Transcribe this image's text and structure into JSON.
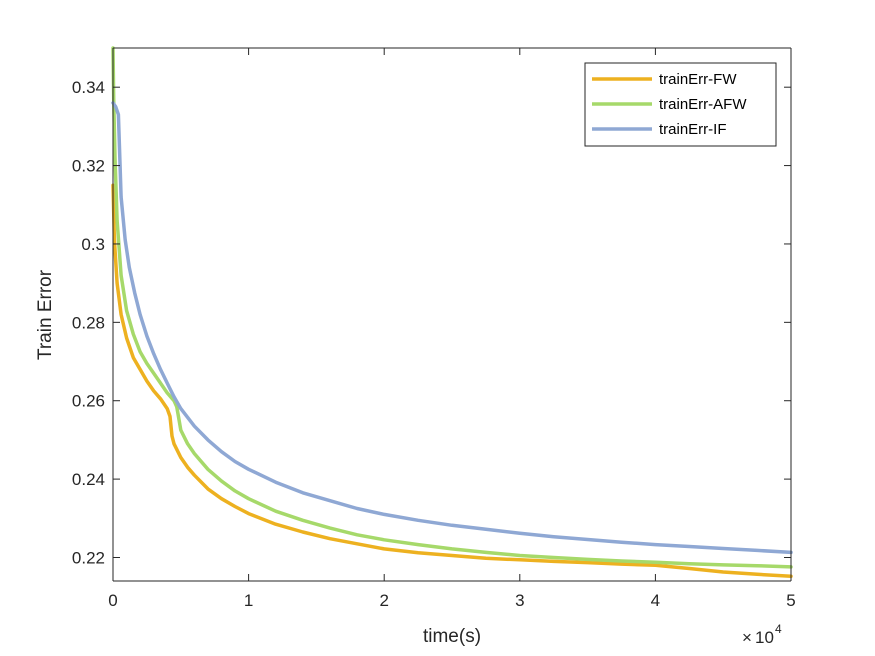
{
  "chart_data": {
    "type": "line",
    "xlabel": "time(s)",
    "ylabel": "Train Error",
    "x_multiplier_label": {
      "base": "10",
      "exponent": "4",
      "times": "×"
    },
    "xlim": [
      0,
      50000
    ],
    "ylim": [
      0.214,
      0.35
    ],
    "x_tick_values": [
      0,
      10000,
      20000,
      30000,
      40000,
      50000
    ],
    "x_tick_labels": [
      "0",
      "1",
      "2",
      "3",
      "4",
      "5"
    ],
    "y_tick_values": [
      0.22,
      0.24,
      0.26,
      0.28,
      0.3,
      0.32,
      0.34
    ],
    "y_tick_labels": [
      "0.22",
      "0.24",
      "0.26",
      "0.28",
      "0.3",
      "0.32",
      "0.34"
    ],
    "grid": false,
    "legend_position": "top-right",
    "series": [
      {
        "name": "trainErr-FW",
        "color": "#EDB120",
        "x": [
          0,
          100,
          300,
          600,
          1000,
          1500,
          2000,
          2500,
          3000,
          3500,
          4000,
          4200,
          4350,
          4500,
          5000,
          5500,
          6000,
          7000,
          8000,
          9000,
          10000,
          12000,
          14000,
          16000,
          18000,
          20000,
          22500,
          25000,
          27500,
          30000,
          32500,
          35000,
          37500,
          40000,
          42500,
          45000,
          47500,
          50000
        ],
        "y": [
          0.315,
          0.301,
          0.29,
          0.282,
          0.276,
          0.271,
          0.268,
          0.265,
          0.2625,
          0.2605,
          0.258,
          0.256,
          0.251,
          0.249,
          0.2455,
          0.243,
          0.241,
          0.2375,
          0.235,
          0.233,
          0.2312,
          0.2285,
          0.2265,
          0.2248,
          0.2235,
          0.2222,
          0.2212,
          0.2205,
          0.2198,
          0.2194,
          0.219,
          0.2187,
          0.2183,
          0.218,
          0.2172,
          0.2163,
          0.2157,
          0.2152
        ]
      },
      {
        "name": "trainErr-AFW",
        "color": "#A6D96A",
        "x": [
          0,
          50,
          150,
          300,
          600,
          1000,
          1500,
          2000,
          2500,
          3000,
          3500,
          4000,
          4500,
          4700,
          4800,
          5000,
          5500,
          6000,
          7000,
          8000,
          9000,
          10000,
          12000,
          14000,
          16000,
          18000,
          20000,
          22500,
          25000,
          27500,
          30000,
          32500,
          35000,
          37500,
          40000,
          42500,
          45000,
          47500,
          50000
        ],
        "y": [
          0.35,
          0.337,
          0.322,
          0.306,
          0.292,
          0.283,
          0.277,
          0.2725,
          0.2695,
          0.267,
          0.2645,
          0.262,
          0.26,
          0.2585,
          0.2565,
          0.2525,
          0.249,
          0.2465,
          0.2425,
          0.2395,
          0.237,
          0.235,
          0.2318,
          0.2295,
          0.2275,
          0.2258,
          0.2245,
          0.2233,
          0.2222,
          0.2213,
          0.2205,
          0.22,
          0.2195,
          0.2191,
          0.2188,
          0.2184,
          0.2181,
          0.2179,
          0.2176
        ]
      },
      {
        "name": "trainErr-IF",
        "color": "#8FA8D4",
        "x": [
          0,
          200,
          400,
          600,
          900,
          1200,
          1600,
          2000,
          2500,
          3000,
          3500,
          4000,
          4500,
          5000,
          6000,
          7000,
          8000,
          9000,
          10000,
          12000,
          14000,
          16000,
          18000,
          20000,
          22500,
          25000,
          27500,
          30000,
          32500,
          35000,
          37500,
          40000,
          42500,
          45000,
          47500,
          50000
        ],
        "y": [
          0.336,
          0.335,
          0.333,
          0.312,
          0.301,
          0.294,
          0.2875,
          0.282,
          0.2765,
          0.272,
          0.268,
          0.2645,
          0.261,
          0.258,
          0.2535,
          0.25,
          0.247,
          0.2445,
          0.2425,
          0.2392,
          0.2365,
          0.2345,
          0.2325,
          0.231,
          0.2295,
          0.2282,
          0.2272,
          0.2262,
          0.2253,
          0.2246,
          0.2239,
          0.2233,
          0.2228,
          0.2223,
          0.2218,
          0.2213
        ]
      }
    ]
  }
}
